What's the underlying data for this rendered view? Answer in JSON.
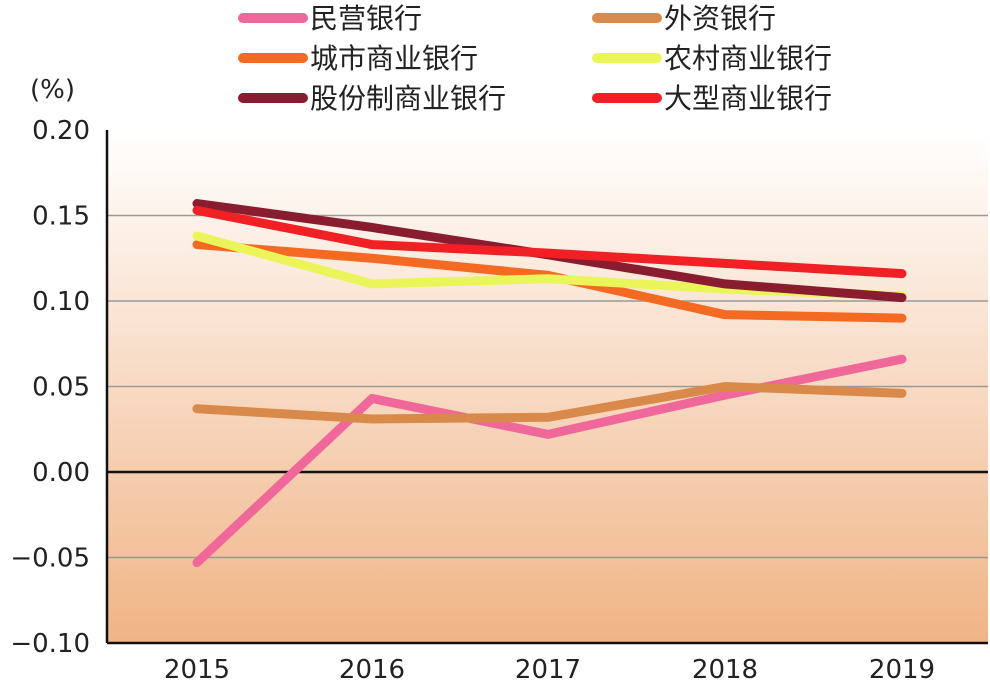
{
  "chart_data": {
    "type": "line",
    "ylabel": "(%)",
    "x": [
      "2015",
      "2016",
      "2017",
      "2018",
      "2019"
    ],
    "ylim": [
      -0.1,
      0.2
    ],
    "yticks": [
      "0.20",
      "0.15",
      "0.10",
      "0.05",
      "0.00",
      "-0.05",
      "-0.10"
    ],
    "ytick_values": [
      0.2,
      0.15,
      0.1,
      0.05,
      0.0,
      -0.05,
      -0.1
    ],
    "grid": true,
    "legend_position": "top",
    "background_gradient": [
      "#ffffff",
      "#f0b486"
    ],
    "series": [
      {
        "name": "民营银行",
        "color": "#f0689a",
        "values": [
          -0.053,
          0.043,
          0.022,
          0.045,
          0.066
        ]
      },
      {
        "name": "外资银行",
        "color": "#d98a4a",
        "values": [
          0.037,
          0.031,
          0.032,
          0.05,
          0.046
        ]
      },
      {
        "name": "城市商业银行",
        "color": "#f56a22",
        "values": [
          0.133,
          0.125,
          0.115,
          0.092,
          0.09
        ]
      },
      {
        "name": "农村商业银行",
        "color": "#eaf55a",
        "values": [
          0.138,
          0.11,
          0.113,
          0.107,
          0.103
        ]
      },
      {
        "name": "股份制商业银行",
        "color": "#8a1c30",
        "values": [
          0.157,
          0.143,
          0.127,
          0.11,
          0.102
        ]
      },
      {
        "name": "大型商业银行",
        "color": "#f02024",
        "values": [
          0.153,
          0.133,
          0.128,
          0.122,
          0.116
        ]
      }
    ]
  }
}
